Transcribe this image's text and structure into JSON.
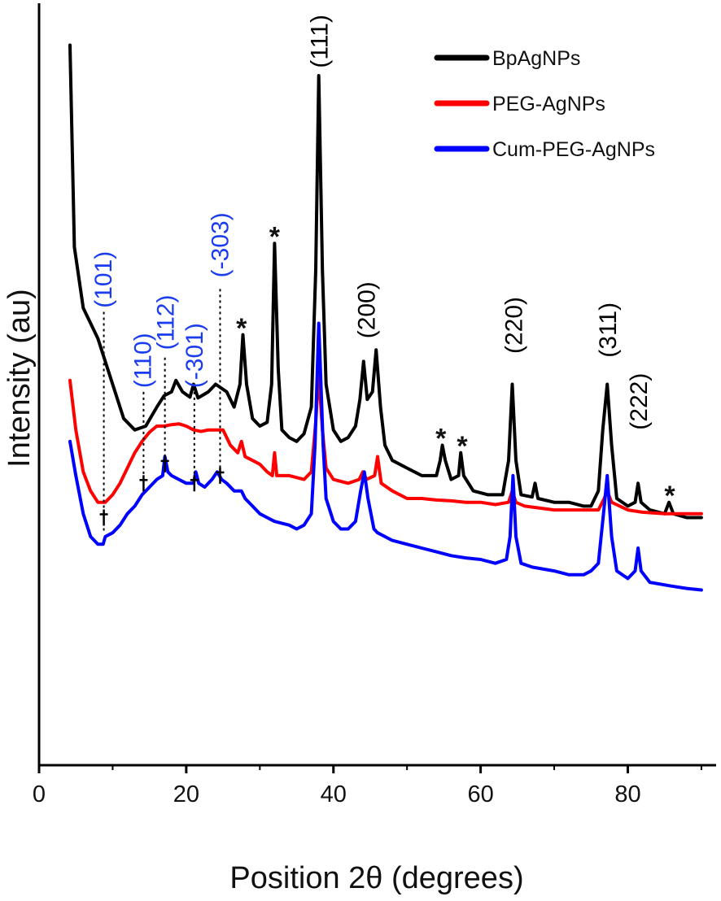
{
  "chart_data": {
    "type": "line",
    "title": "",
    "xlabel": "Position 2θ (degrees)",
    "ylabel": "Intensity (au)",
    "xlim": [
      0,
      92
    ],
    "ylim": [
      0,
      1
    ],
    "x_ticks": [
      0,
      20,
      40,
      60,
      80
    ],
    "y_ticks_labeled": false,
    "grid": false,
    "legend_position": "top-right",
    "series": [
      {
        "name": "BpAgNPs",
        "color": "#000000",
        "points": [
          [
            4.2,
            0.945
          ],
          [
            4.8,
            0.68
          ],
          [
            6,
            0.6
          ],
          [
            8,
            0.56
          ],
          [
            10,
            0.5
          ],
          [
            11.5,
            0.455
          ],
          [
            13,
            0.44
          ],
          [
            14.5,
            0.445
          ],
          [
            16,
            0.47
          ],
          [
            17,
            0.485
          ],
          [
            18,
            0.49
          ],
          [
            18.6,
            0.505
          ],
          [
            19.5,
            0.49
          ],
          [
            20.5,
            0.483
          ],
          [
            21,
            0.5
          ],
          [
            21.6,
            0.482
          ],
          [
            23,
            0.49
          ],
          [
            24,
            0.5
          ],
          [
            25.5,
            0.49
          ],
          [
            26.5,
            0.47
          ],
          [
            27.3,
            0.5
          ],
          [
            27.7,
            0.565
          ],
          [
            28.2,
            0.5
          ],
          [
            29,
            0.455
          ],
          [
            30,
            0.445
          ],
          [
            31,
            0.45
          ],
          [
            31.6,
            0.5
          ],
          [
            32,
            0.685
          ],
          [
            32.5,
            0.52
          ],
          [
            33,
            0.44
          ],
          [
            34,
            0.43
          ],
          [
            35,
            0.425
          ],
          [
            36,
            0.435
          ],
          [
            37,
            0.47
          ],
          [
            37.6,
            0.65
          ],
          [
            38,
            0.905
          ],
          [
            38.5,
            0.65
          ],
          [
            39,
            0.5
          ],
          [
            40,
            0.44
          ],
          [
            41,
            0.425
          ],
          [
            42,
            0.43
          ],
          [
            43,
            0.445
          ],
          [
            43.6,
            0.48
          ],
          [
            44.1,
            0.53
          ],
          [
            44.6,
            0.48
          ],
          [
            45.3,
            0.49
          ],
          [
            45.8,
            0.545
          ],
          [
            46.4,
            0.47
          ],
          [
            47,
            0.42
          ],
          [
            48,
            0.4
          ],
          [
            50,
            0.39
          ],
          [
            52,
            0.38
          ],
          [
            54,
            0.38
          ],
          [
            54.5,
            0.4
          ],
          [
            54.8,
            0.42
          ],
          [
            55.2,
            0.4
          ],
          [
            56,
            0.375
          ],
          [
            57,
            0.38
          ],
          [
            57.3,
            0.41
          ],
          [
            57.7,
            0.38
          ],
          [
            59,
            0.36
          ],
          [
            61,
            0.355
          ],
          [
            63,
            0.355
          ],
          [
            63.8,
            0.4
          ],
          [
            64.3,
            0.5
          ],
          [
            64.8,
            0.4
          ],
          [
            65.5,
            0.355
          ],
          [
            67,
            0.352
          ],
          [
            67.4,
            0.37
          ],
          [
            67.8,
            0.35
          ],
          [
            70,
            0.345
          ],
          [
            72,
            0.345
          ],
          [
            74,
            0.34
          ],
          [
            75,
            0.34
          ],
          [
            76,
            0.36
          ],
          [
            76.6,
            0.44
          ],
          [
            77.2,
            0.5
          ],
          [
            77.8,
            0.42
          ],
          [
            78.5,
            0.35
          ],
          [
            80,
            0.34
          ],
          [
            81,
            0.345
          ],
          [
            81.4,
            0.37
          ],
          [
            81.8,
            0.345
          ],
          [
            83,
            0.335
          ],
          [
            85,
            0.33
          ],
          [
            85.6,
            0.345
          ],
          [
            86.2,
            0.33
          ],
          [
            88,
            0.325
          ],
          [
            90,
            0.325
          ]
        ]
      },
      {
        "name": "PEG-AgNPs",
        "color": "#ff0000",
        "points": [
          [
            4.2,
            0.505
          ],
          [
            5,
            0.44
          ],
          [
            6,
            0.385
          ],
          [
            7,
            0.36
          ],
          [
            8,
            0.345
          ],
          [
            9,
            0.345
          ],
          [
            10,
            0.355
          ],
          [
            11,
            0.37
          ],
          [
            12,
            0.39
          ],
          [
            13,
            0.41
          ],
          [
            14,
            0.425
          ],
          [
            15,
            0.437
          ],
          [
            16,
            0.445
          ],
          [
            17,
            0.445
          ],
          [
            18,
            0.447
          ],
          [
            19,
            0.448
          ],
          [
            20,
            0.445
          ],
          [
            21,
            0.44
          ],
          [
            22,
            0.438
          ],
          [
            23,
            0.44
          ],
          [
            24,
            0.44
          ],
          [
            25,
            0.44
          ],
          [
            26,
            0.42
          ],
          [
            27,
            0.41
          ],
          [
            27.5,
            0.425
          ],
          [
            28,
            0.405
          ],
          [
            29,
            0.4
          ],
          [
            30,
            0.395
          ],
          [
            31,
            0.385
          ],
          [
            31.7,
            0.38
          ],
          [
            32,
            0.41
          ],
          [
            32.3,
            0.38
          ],
          [
            34,
            0.38
          ],
          [
            36,
            0.375
          ],
          [
            37,
            0.385
          ],
          [
            37.6,
            0.45
          ],
          [
            38,
            0.515
          ],
          [
            38.5,
            0.44
          ],
          [
            39,
            0.39
          ],
          [
            40,
            0.375
          ],
          [
            42,
            0.37
          ],
          [
            43.5,
            0.375
          ],
          [
            44,
            0.385
          ],
          [
            44.5,
            0.375
          ],
          [
            45.6,
            0.38
          ],
          [
            46,
            0.405
          ],
          [
            46.5,
            0.37
          ],
          [
            48,
            0.36
          ],
          [
            50,
            0.35
          ],
          [
            52,
            0.35
          ],
          [
            54,
            0.348
          ],
          [
            56,
            0.347
          ],
          [
            58,
            0.345
          ],
          [
            60,
            0.345
          ],
          [
            62,
            0.342
          ],
          [
            63.8,
            0.345
          ],
          [
            64.3,
            0.36
          ],
          [
            64.8,
            0.345
          ],
          [
            66,
            0.34
          ],
          [
            70,
            0.335
          ],
          [
            74,
            0.335
          ],
          [
            76,
            0.335
          ],
          [
            76.8,
            0.35
          ],
          [
            77.2,
            0.36
          ],
          [
            77.8,
            0.345
          ],
          [
            80,
            0.335
          ],
          [
            82,
            0.332
          ],
          [
            85,
            0.33
          ],
          [
            86,
            0.33
          ],
          [
            88,
            0.33
          ],
          [
            90,
            0.33
          ]
        ]
      },
      {
        "name": "Cum-PEG-AgNPs",
        "color": "#0000ff",
        "points": [
          [
            4.2,
            0.425
          ],
          [
            5,
            0.38
          ],
          [
            6,
            0.33
          ],
          [
            7,
            0.3
          ],
          [
            8,
            0.29
          ],
          [
            8.7,
            0.29
          ],
          [
            9,
            0.3
          ],
          [
            10,
            0.305
          ],
          [
            11,
            0.315
          ],
          [
            12,
            0.33
          ],
          [
            13,
            0.34
          ],
          [
            14,
            0.355
          ],
          [
            15,
            0.365
          ],
          [
            16,
            0.375
          ],
          [
            16.8,
            0.38
          ],
          [
            17.1,
            0.405
          ],
          [
            17.5,
            0.385
          ],
          [
            18,
            0.38
          ],
          [
            19,
            0.375
          ],
          [
            20,
            0.37
          ],
          [
            21,
            0.37
          ],
          [
            21.3,
            0.385
          ],
          [
            21.7,
            0.37
          ],
          [
            22.5,
            0.365
          ],
          [
            23.5,
            0.375
          ],
          [
            24.2,
            0.385
          ],
          [
            24.8,
            0.375
          ],
          [
            25.5,
            0.37
          ],
          [
            26.5,
            0.36
          ],
          [
            27,
            0.36
          ],
          [
            27.5,
            0.36
          ],
          [
            28,
            0.35
          ],
          [
            29,
            0.34
          ],
          [
            30,
            0.33
          ],
          [
            31,
            0.325
          ],
          [
            32,
            0.32
          ],
          [
            34,
            0.315
          ],
          [
            35,
            0.31
          ],
          [
            36,
            0.315
          ],
          [
            37,
            0.33
          ],
          [
            37.5,
            0.42
          ],
          [
            38,
            0.58
          ],
          [
            38.6,
            0.42
          ],
          [
            39,
            0.35
          ],
          [
            40,
            0.32
          ],
          [
            41,
            0.31
          ],
          [
            42,
            0.31
          ],
          [
            43,
            0.32
          ],
          [
            43.7,
            0.36
          ],
          [
            44.2,
            0.385
          ],
          [
            44.7,
            0.35
          ],
          [
            45.5,
            0.31
          ],
          [
            46,
            0.305
          ],
          [
            48,
            0.295
          ],
          [
            50,
            0.29
          ],
          [
            52,
            0.285
          ],
          [
            54,
            0.28
          ],
          [
            56,
            0.275
          ],
          [
            58,
            0.272
          ],
          [
            60,
            0.27
          ],
          [
            62,
            0.265
          ],
          [
            63.5,
            0.27
          ],
          [
            64,
            0.3
          ],
          [
            64.4,
            0.38
          ],
          [
            64.8,
            0.3
          ],
          [
            65.5,
            0.265
          ],
          [
            67,
            0.26
          ],
          [
            70,
            0.255
          ],
          [
            72,
            0.25
          ],
          [
            74,
            0.25
          ],
          [
            75,
            0.255
          ],
          [
            76,
            0.265
          ],
          [
            76.7,
            0.33
          ],
          [
            77.2,
            0.38
          ],
          [
            77.8,
            0.3
          ],
          [
            78.5,
            0.255
          ],
          [
            80,
            0.245
          ],
          [
            81,
            0.255
          ],
          [
            81.4,
            0.285
          ],
          [
            81.8,
            0.255
          ],
          [
            83,
            0.24
          ],
          [
            86,
            0.235
          ],
          [
            88,
            0.232
          ],
          [
            90,
            0.23
          ]
        ]
      }
    ],
    "annotations": {
      "silver_peaks": [
        {
          "label": "(111)",
          "x": 38.0,
          "y": 0.915,
          "color": "#000000"
        },
        {
          "label": "(200)",
          "x": 44.4,
          "y": 0.56,
          "color": "#000000"
        },
        {
          "label": "(220)",
          "x": 64.4,
          "y": 0.54,
          "color": "#000000"
        },
        {
          "label": "(311)",
          "x": 77.2,
          "y": 0.535,
          "color": "#000000"
        },
        {
          "label": "(222)",
          "x": 81.4,
          "y": 0.44,
          "color": "#000000"
        }
      ],
      "blue_peaks": [
        {
          "label": "(101)",
          "x": 8.6,
          "y": 0.6,
          "color": "#1a3cf0"
        },
        {
          "label": "(110)",
          "x": 14.0,
          "y": 0.495,
          "color": "#1a3cf0"
        },
        {
          "label": "(112)",
          "x": 17.1,
          "y": 0.545,
          "color": "#1a3cf0"
        },
        {
          "label": "(-301)",
          "x": 21.0,
          "y": 0.495,
          "color": "#1a3cf0"
        },
        {
          "label": "(-303)",
          "x": 24.5,
          "y": 0.64,
          "color": "#1a3cf0"
        }
      ],
      "dotted_lines": [
        {
          "x": 8.8,
          "y_top": 0.595,
          "y_bottom": 0.305
        },
        {
          "x": 14.2,
          "y_top": 0.49,
          "y_bottom": 0.375
        },
        {
          "x": 17.1,
          "y_top": 0.535,
          "y_bottom": 0.4
        },
        {
          "x": 21.1,
          "y_top": 0.49,
          "y_bottom": 0.38
        },
        {
          "x": 24.6,
          "y_top": 0.625,
          "y_bottom": 0.385
        }
      ],
      "stars": [
        {
          "x": 27.5,
          "y": 0.585
        },
        {
          "x": 32.0,
          "y": 0.705
        },
        {
          "x": 54.6,
          "y": 0.44
        },
        {
          "x": 57.5,
          "y": 0.43
        },
        {
          "x": 85.7,
          "y": 0.365
        }
      ],
      "daggers": [
        {
          "x": 8.8,
          "y": 0.325
        },
        {
          "x": 14.2,
          "y": 0.37
        },
        {
          "x": 17.1,
          "y": 0.395
        },
        {
          "x": 21.1,
          "y": 0.37
        },
        {
          "x": 24.6,
          "y": 0.38
        }
      ]
    }
  }
}
